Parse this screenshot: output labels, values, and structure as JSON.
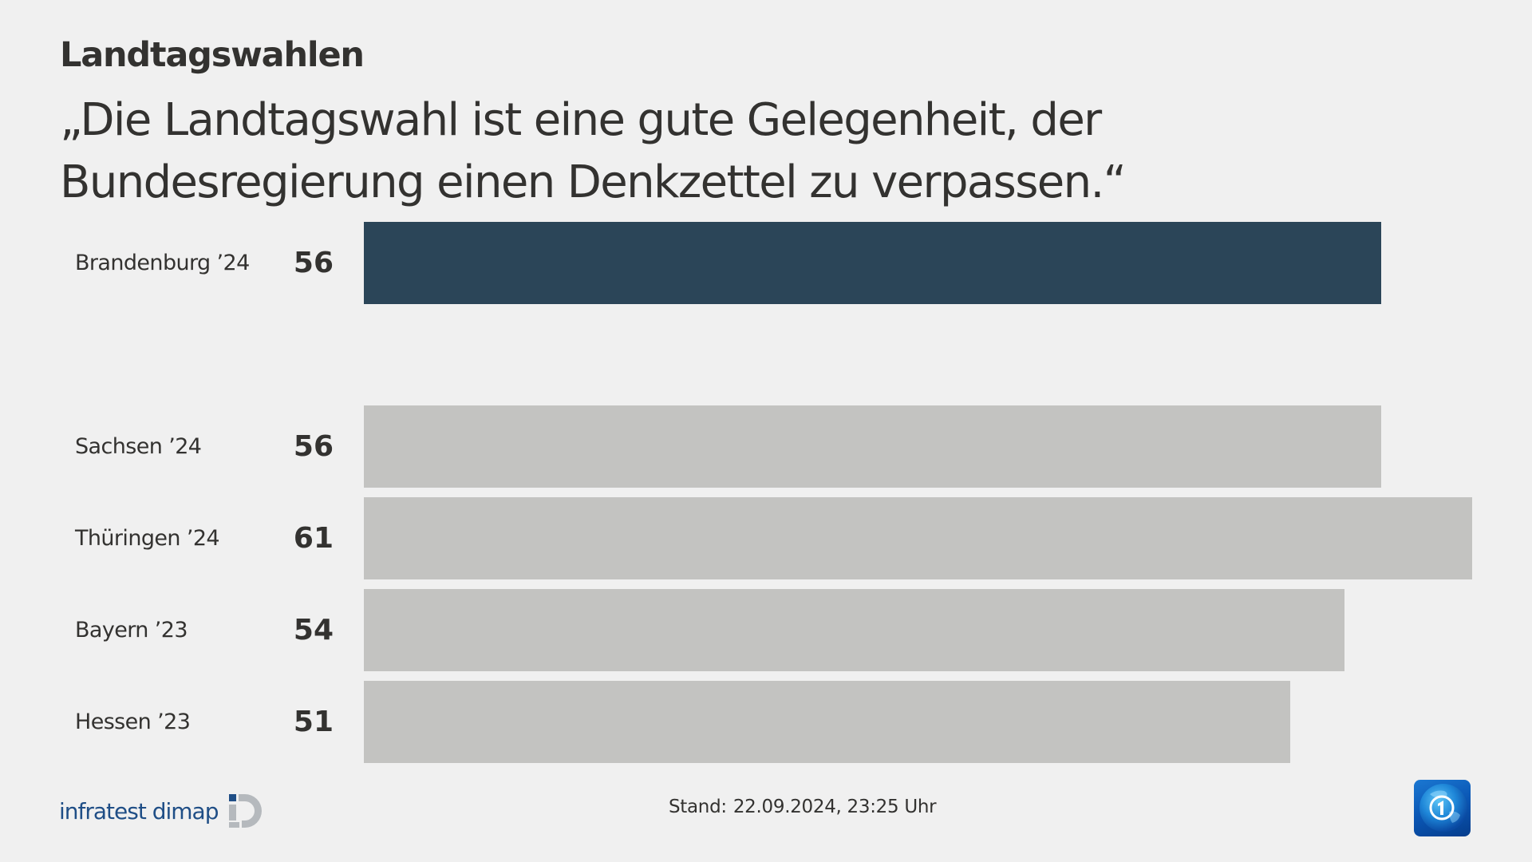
{
  "header": {
    "kicker": "Landtagswahlen",
    "headline_line1": "„Die Landtagswahl ist eine gute Gelegenheit, der",
    "headline_line2": "Bundesregierung einen Denkzettel zu verpassen.“"
  },
  "rows": [
    {
      "label": "Brandenburg ’24",
      "value": "56",
      "highlight": true
    },
    {
      "label": "Sachsen ’24",
      "value": "56",
      "highlight": false
    },
    {
      "label": "Thüringen ’24",
      "value": "61",
      "highlight": false
    },
    {
      "label": "Bayern ’23",
      "value": "54",
      "highlight": false
    },
    {
      "label": "Hessen ’23",
      "value": "51",
      "highlight": false
    }
  ],
  "footer": {
    "source": "infratest dimap",
    "stand_label": "Stand:",
    "stand_value": "22.09.2024, 23:25 Uhr",
    "broadcaster_logo": "tagesschau-logo"
  },
  "colors": {
    "background": "#f0f0f0",
    "highlight_bar": "#2b4558",
    "bar": "#c3c3c1",
    "text": "#333230",
    "infratest_blue": "#1f4e86"
  },
  "chart_data": {
    "type": "bar",
    "orientation": "horizontal",
    "title": "Landtagswahlen",
    "subtitle": "„Die Landtagswahl ist eine gute Gelegenheit, der Bundesregierung einen Denkzettel zu verpassen.“",
    "categories": [
      "Brandenburg ’24",
      "Sachsen ’24",
      "Thüringen ’24",
      "Bayern ’23",
      "Hessen ’23"
    ],
    "values": [
      56,
      56,
      61,
      54,
      51
    ],
    "highlighted_category": "Brandenburg ’24",
    "xlabel": "",
    "ylabel": "",
    "unit": "%",
    "grid": false,
    "legend": null,
    "source": "infratest dimap",
    "annotation": "Stand: 22.09.2024, 23:25 Uhr"
  }
}
